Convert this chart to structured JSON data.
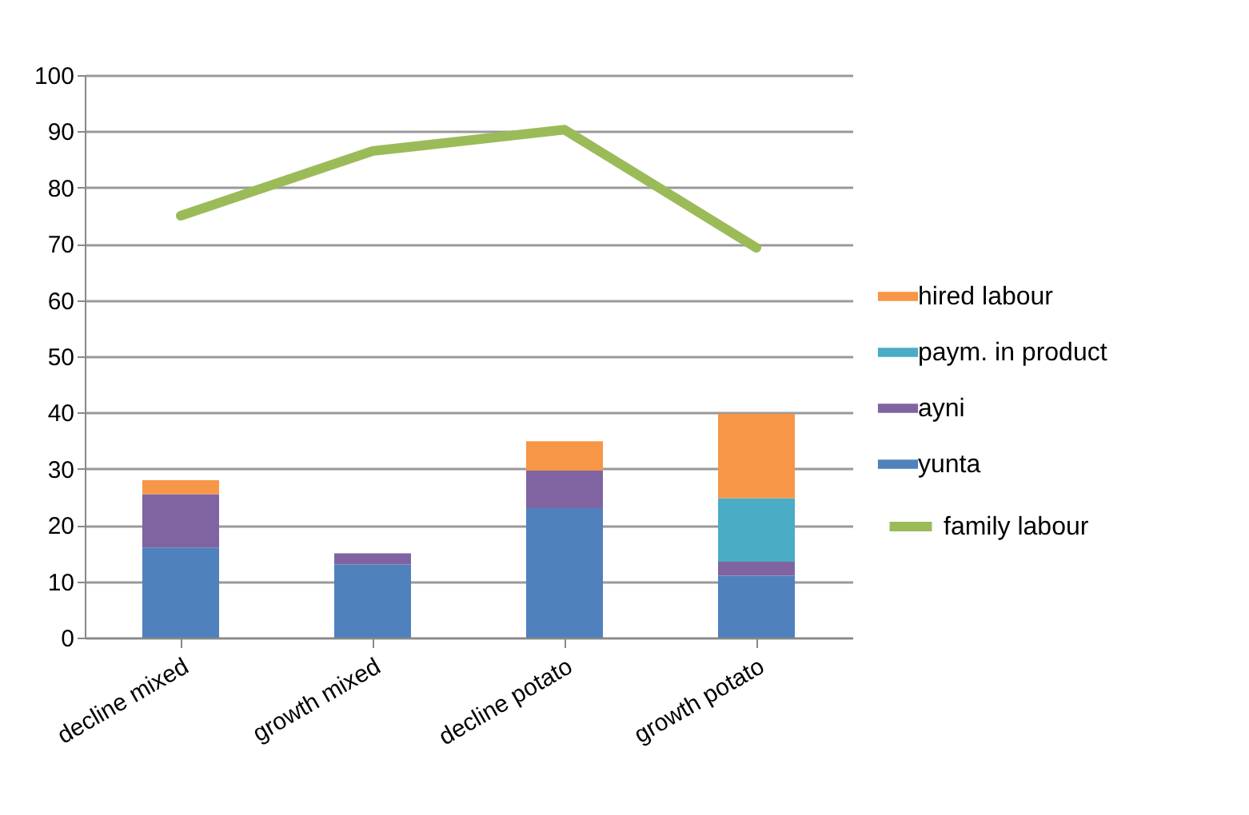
{
  "chart_data": {
    "type": "bar",
    "stacked": true,
    "categories": [
      "decline mixed",
      "growth mixed",
      "decline potato",
      "growth potato"
    ],
    "series": [
      {
        "name": "yunta",
        "color": "#4f81bd",
        "values": [
          16,
          13,
          23,
          11
        ]
      },
      {
        "name": "ayni",
        "color": "#8064a2",
        "values": [
          9.5,
          2,
          6.7,
          2.5
        ]
      },
      {
        "name": "paym. in product",
        "color": "#4bacc6",
        "values": [
          0,
          0,
          0,
          11.3
        ]
      },
      {
        "name": "hired labour",
        "color": "#f79646",
        "values": [
          2.5,
          0,
          5.2,
          15
        ]
      },
      {
        "name": "family labour",
        "type": "line",
        "color": "#9bbb59",
        "values": [
          75,
          86.5,
          90.3,
          69.3
        ]
      }
    ],
    "ylim": [
      0,
      100
    ],
    "yticks": [
      0,
      10,
      20,
      30,
      40,
      50,
      60,
      70,
      80,
      90,
      100
    ],
    "grid": "y",
    "legend": "right"
  }
}
